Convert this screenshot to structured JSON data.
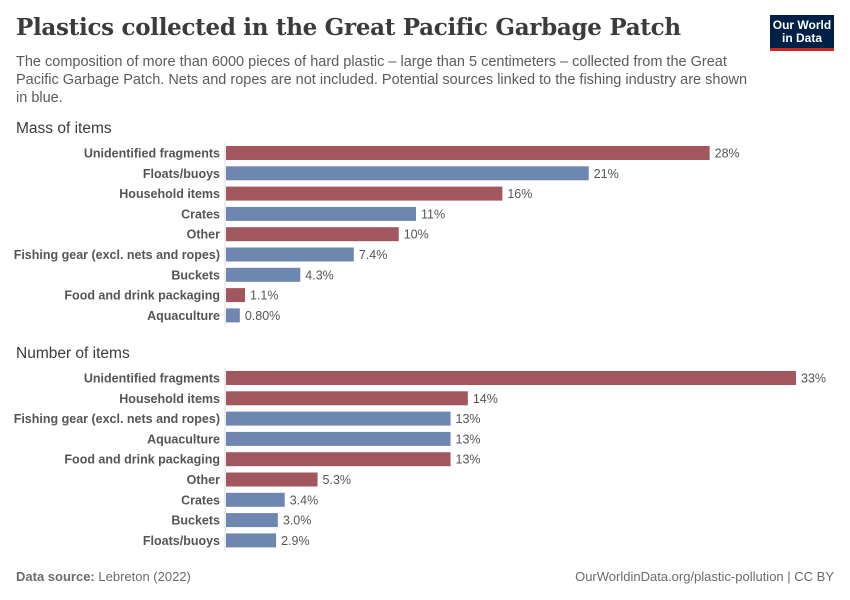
{
  "title": "Plastics collected in the Great Pacific Garbage Patch",
  "subtitle": "The composition of more than 6000 pieces of hard plastic – large than 5 centimeters – collected from the Great Pacific Garbage Patch. Nets and ropes are not included. Potential sources linked to the fishing industry are shown in blue.",
  "logo": "Our World in Data",
  "logo_line1": "Our World",
  "logo_line2": "in Data",
  "colors": {
    "fishing": "#6d87b0",
    "other": "#a2575f"
  },
  "chart_data": [
    {
      "type": "bar",
      "orientation": "horizontal",
      "title": "Mass of items",
      "unit": "%",
      "categories": [
        "Unidentified fragments",
        "Floats/buoys",
        "Household items",
        "Crates",
        "Other",
        "Fishing gear (excl. nets and ropes)",
        "Buckets",
        "Food and drink packaging",
        "Aquaculture"
      ],
      "values": [
        28,
        21,
        16,
        11,
        10,
        7.4,
        4.3,
        1.1,
        0.8
      ],
      "labels": [
        "28%",
        "21%",
        "16%",
        "11%",
        "10%",
        "7.4%",
        "4.3%",
        "1.1%",
        "0.80%"
      ],
      "fishing": [
        false,
        true,
        false,
        true,
        false,
        true,
        true,
        false,
        true
      ]
    },
    {
      "type": "bar",
      "orientation": "horizontal",
      "title": "Number of items",
      "unit": "%",
      "categories": [
        "Unidentified fragments",
        "Household items",
        "Fishing gear (excl. nets and ropes)",
        "Aquaculture",
        "Food and drink packaging",
        "Other",
        "Crates",
        "Buckets",
        "Floats/buoys"
      ],
      "values": [
        33,
        14,
        13,
        13,
        13,
        5.3,
        3.4,
        3.0,
        2.9
      ],
      "labels": [
        "33%",
        "14%",
        "13%",
        "13%",
        "13%",
        "5.3%",
        "3.4%",
        "3.0%",
        "2.9%"
      ],
      "fishing": [
        false,
        false,
        true,
        true,
        false,
        false,
        true,
        true,
        true
      ]
    }
  ],
  "footer": {
    "source_label": "Data source:",
    "source": "Lebreton (2022)",
    "url": "OurWorldinData.org/plastic-pollution | CC BY"
  }
}
